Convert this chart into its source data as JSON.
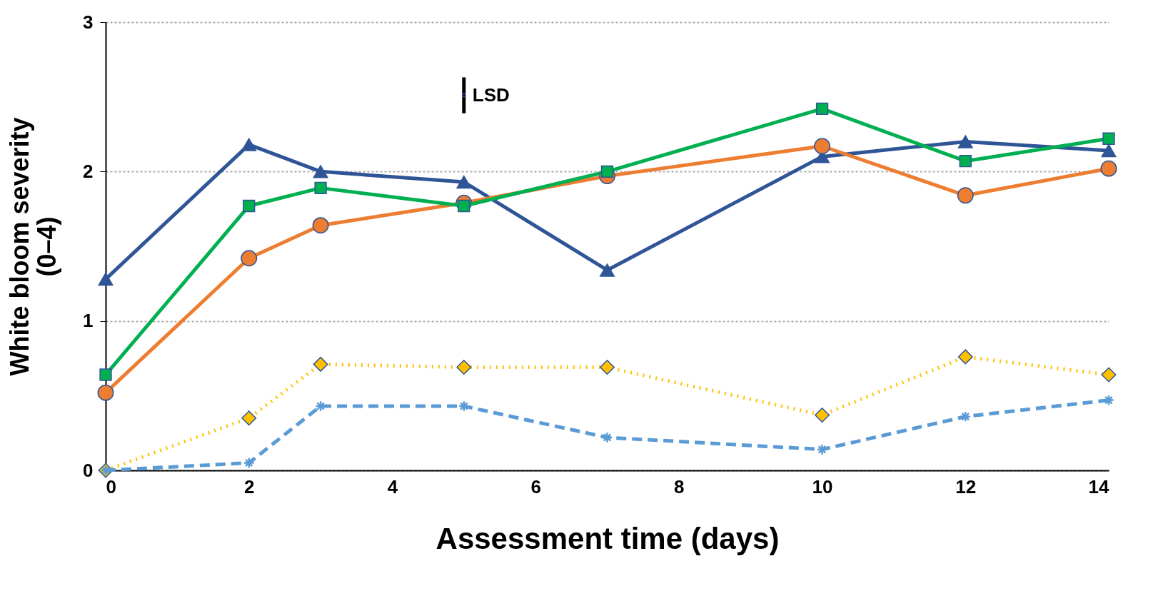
{
  "chart_data": {
    "type": "line",
    "xlabel": "Assessment time (days)",
    "ylabel": "White bloom severity\n(0–4)",
    "xlim": [
      0,
      14
    ],
    "ylim": [
      0,
      3
    ],
    "xticks": [
      0,
      2,
      4,
      6,
      8,
      10,
      12,
      14
    ],
    "yticks": [
      0,
      1,
      2,
      3
    ],
    "grid": "y",
    "x": [
      0,
      2,
      3,
      5,
      7,
      10,
      12,
      14
    ],
    "series": [
      {
        "color": "#2f5597",
        "marker": "triangle",
        "line_style": "solid",
        "values": [
          1.28,
          2.18,
          2.0,
          1.93,
          1.34,
          2.1,
          2.2,
          2.14
        ]
      },
      {
        "color": "#ed7d31",
        "marker": "circle",
        "line_style": "solid",
        "values": [
          0.52,
          1.42,
          1.64,
          1.79,
          1.97,
          2.17,
          1.84,
          2.02
        ]
      },
      {
        "color": "#00b050",
        "marker": "square",
        "line_style": "solid",
        "values": [
          0.64,
          1.77,
          1.89,
          1.77,
          2.0,
          2.42,
          2.07,
          2.22
        ]
      },
      {
        "color": "#ffc000",
        "marker": "diamond",
        "line_style": "dotted",
        "values": [
          0,
          0.35,
          0.71,
          0.69,
          0.69,
          0.37,
          0.76,
          0.64
        ]
      },
      {
        "color": "#5b9bd5",
        "marker": "cross",
        "line_style": "dashed",
        "values": [
          0,
          0.05,
          0.43,
          0.43,
          0.22,
          0.14,
          0.36,
          0.47
        ]
      },
      {
        "type": "scatter",
        "color": "#000000",
        "marker": "square",
        "x": [
          5
        ],
        "values": [
          2.51
        ],
        "errors": [
          0.12
        ]
      }
    ],
    "annotations": [
      {
        "text": "LSD",
        "x": 5,
        "y": 2.51
      }
    ]
  }
}
